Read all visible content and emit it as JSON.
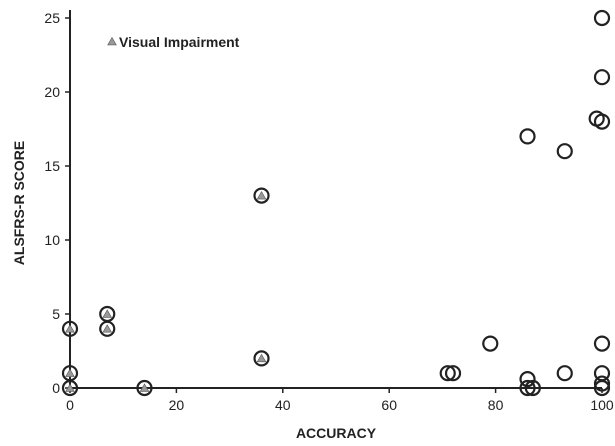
{
  "chart_data": {
    "type": "scatter",
    "xlabel": "ACCURACY",
    "ylabel": "ALSFRS-R SCORE",
    "xlim": [
      0,
      100
    ],
    "ylim": [
      0,
      25
    ],
    "x_ticks": [
      "0",
      "20",
      "40",
      "60",
      "80",
      "100"
    ],
    "y_ticks": [
      "0",
      "5",
      "10",
      "15",
      "20",
      "25"
    ],
    "legend": {
      "label": "Visual Impairment",
      "position": "top-left"
    },
    "colors": {
      "marker_edge": "#222222",
      "triangle_fill": "#999999",
      "axis": "#222222"
    },
    "series": [
      {
        "name": "Visual Impairment",
        "marker": "circle-with-triangle",
        "points": [
          [
            0,
            4
          ],
          [
            0,
            1
          ],
          [
            0,
            0
          ],
          [
            7,
            5
          ],
          [
            7,
            4
          ],
          [
            14,
            0
          ],
          [
            36,
            13
          ],
          [
            36,
            2
          ]
        ]
      },
      {
        "marker": "circle",
        "points": [
          [
            71,
            1
          ],
          [
            72,
            1
          ],
          [
            79,
            3
          ],
          [
            86,
            17
          ],
          [
            86,
            0.6
          ],
          [
            86,
            0
          ],
          [
            87,
            0
          ],
          [
            93,
            16
          ],
          [
            93,
            1
          ],
          [
            99,
            18.2
          ],
          [
            100,
            18
          ],
          [
            100,
            25
          ],
          [
            100,
            21
          ],
          [
            100,
            3
          ],
          [
            100,
            1
          ],
          [
            100,
            0.3
          ],
          [
            100,
            0
          ]
        ]
      }
    ]
  }
}
